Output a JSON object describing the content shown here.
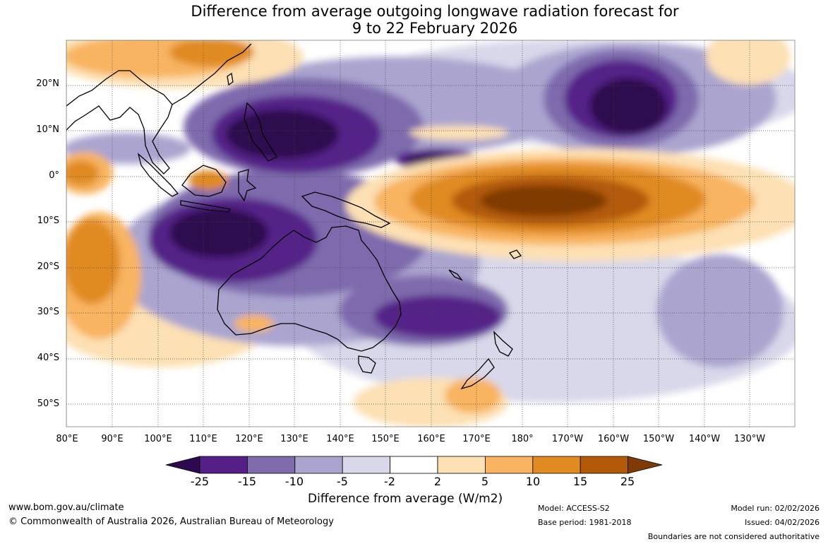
{
  "title": {
    "line1": "Difference from average outgoing longwave radiation forecast for",
    "line2": "9 to 22 February 2026"
  },
  "map": {
    "lat_labels": [
      "20°N",
      "10°N",
      "0°",
      "10°S",
      "20°S",
      "30°S",
      "40°S",
      "50°S"
    ],
    "lon_labels": [
      "80°E",
      "90°E",
      "100°E",
      "110°E",
      "120°E",
      "130°E",
      "140°E",
      "150°E",
      "160°E",
      "170°E",
      "180°",
      "170°W",
      "160°W",
      "150°W",
      "140°W",
      "130°W"
    ]
  },
  "colorbar": {
    "ticks": [
      "-25",
      "-15",
      "-10",
      "-5",
      "-2",
      "2",
      "5",
      "10",
      "15",
      "25"
    ],
    "colors": [
      "#2d0a50",
      "#542088",
      "#7e6aad",
      "#aaa4cf",
      "#d8d8ea",
      "#ffffff",
      "#fde0b3",
      "#f8b460",
      "#e08a22",
      "#b35a09",
      "#7f3a05"
    ],
    "label": "Difference from average (W/m2)"
  },
  "footer": {
    "url": "www.bom.gov.au/climate",
    "copyright": "© Commonwealth of Australia 2026, Australian Bureau of Meteorology",
    "model": "Model: ACCESS-S2",
    "base_period": "Base period: 1981-2018",
    "model_run": "Model run: 02/02/2026",
    "issued": "Issued: 04/02/2026",
    "disclaimer": "Boundaries are not considered authoritative"
  }
}
